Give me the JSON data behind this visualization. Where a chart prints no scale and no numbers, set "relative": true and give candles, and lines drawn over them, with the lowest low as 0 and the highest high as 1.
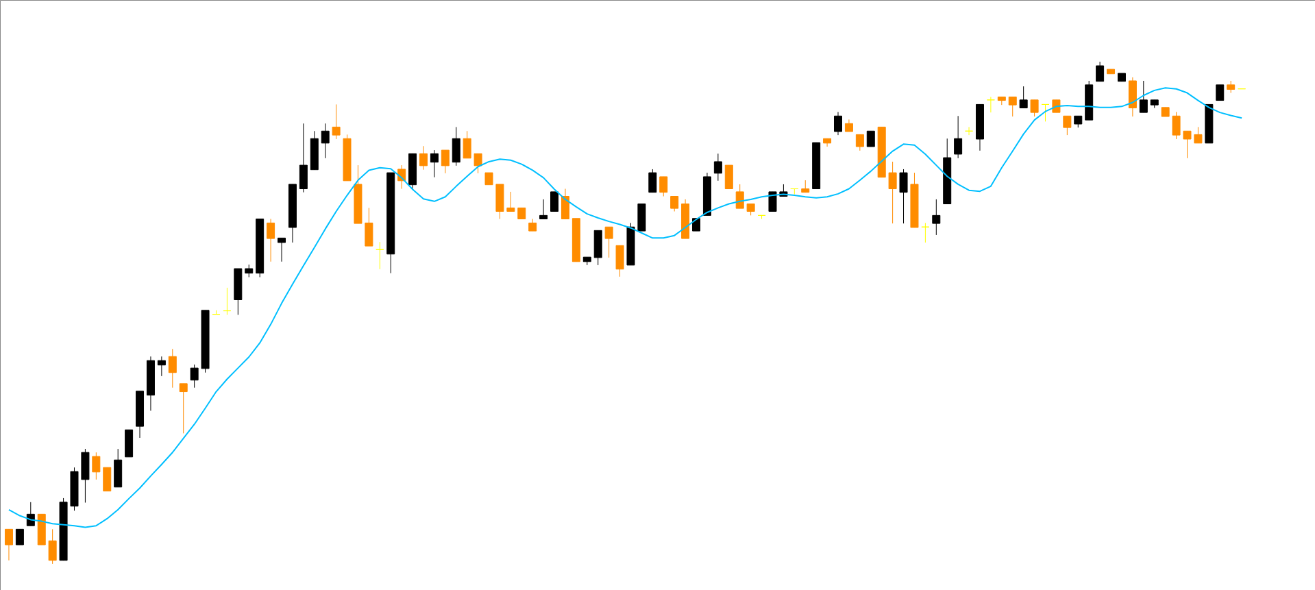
{
  "chart_data": {
    "type": "candlestick",
    "relative": true,
    "tick_labels": false,
    "categories": [
      null,
      null,
      null,
      null,
      null,
      null,
      null,
      null,
      null,
      null,
      null,
      null,
      null,
      null,
      null,
      null,
      null,
      null,
      null,
      null,
      null,
      null,
      null,
      null,
      null,
      null,
      null,
      null,
      null,
      null,
      null,
      null,
      null,
      null,
      null,
      null,
      null,
      null,
      null,
      null,
      null,
      null,
      null,
      null,
      null,
      null,
      null,
      null,
      null,
      null,
      null,
      null,
      null,
      null,
      null,
      null,
      null,
      null,
      null,
      null,
      null,
      null,
      null,
      null,
      null,
      null,
      null,
      null,
      null,
      null,
      null,
      null,
      null,
      null,
      null,
      null,
      null,
      null,
      null,
      null,
      null,
      null,
      null,
      null,
      null,
      null,
      null,
      null,
      null,
      null,
      null,
      null,
      null,
      null,
      null,
      null,
      null,
      null,
      null,
      null,
      null,
      null,
      null,
      null,
      null,
      null,
      null,
      null,
      null,
      null,
      null,
      null,
      null,
      null
    ],
    "ohlc": [
      [
        0.069,
        0.069,
        0.007,
        0.038
      ],
      [
        0.038,
        0.069,
        0.038,
        0.069
      ],
      [
        0.076,
        0.123,
        0.076,
        0.099
      ],
      [
        0.099,
        0.099,
        0.038,
        0.038
      ],
      [
        0.046,
        0.069,
        0,
        0.007
      ],
      [
        0.007,
        0.131,
        0.007,
        0.123
      ],
      [
        0.115,
        0.192,
        0.106,
        0.184
      ],
      [
        0.168,
        0.229,
        0.122,
        0.222
      ],
      [
        0.214,
        0.222,
        0.168,
        0.183
      ],
      [
        0.192,
        0.192,
        0.145,
        0.145
      ],
      [
        0.153,
        0.229,
        0.153,
        0.207
      ],
      [
        0.213,
        0.267,
        0.213,
        0.267
      ],
      [
        0.274,
        0.344,
        0.251,
        0.344
      ],
      [
        0.336,
        0.413,
        0.305,
        0.405
      ],
      [
        0.396,
        0.413,
        0.374,
        0.405
      ],
      [
        0.413,
        0.428,
        0.351,
        0.381
      ],
      [
        0.359,
        0.359,
        0.26,
        0.343
      ],
      [
        0.366,
        0.397,
        0.351,
        0.39
      ],
      [
        0.389,
        0.505,
        0.381,
        0.505
      ],
      [
        0.497,
        0.505,
        0.497,
        0.497
      ],
      [
        0.504,
        0.55,
        0.496,
        0.504
      ],
      [
        0.526,
        0.588,
        0.496,
        0.588
      ],
      [
        0.579,
        0.596,
        0.571,
        0.588
      ],
      [
        0.579,
        0.687,
        0.571,
        0.687
      ],
      [
        0.679,
        0.687,
        0.602,
        0.648
      ],
      [
        0.64,
        0.649,
        0.602,
        0.649
      ],
      [
        0.67,
        0.756,
        0.64,
        0.756
      ],
      [
        0.747,
        0.877,
        0.74,
        0.794
      ],
      [
        0.785,
        0.862,
        0.785,
        0.847
      ],
      [
        0.838,
        0.877,
        0.808,
        0.862
      ],
      [
        0.87,
        0.915,
        0.846,
        0.854
      ],
      [
        0.847,
        0.855,
        0.763,
        0.763
      ],
      [
        0.756,
        0.794,
        0.678,
        0.678
      ],
      [
        0.679,
        0.709,
        0.633,
        0.633
      ],
      [
        0.626,
        0.641,
        0.587,
        0.626
      ],
      [
        0.617,
        0.779,
        0.579,
        0.779
      ],
      [
        0.786,
        0.794,
        0.747,
        0.763
      ],
      [
        0.755,
        0.817,
        0.747,
        0.817
      ],
      [
        0.817,
        0.832,
        0.785,
        0.793
      ],
      [
        0.8,
        0.824,
        0.77,
        0.817
      ],
      [
        0.824,
        0.824,
        0.778,
        0.793
      ],
      [
        0.8,
        0.87,
        0.793,
        0.847
      ],
      [
        0.847,
        0.862,
        0.808,
        0.808
      ],
      [
        0.817,
        0.817,
        0.778,
        0.793
      ],
      [
        0.779,
        0.779,
        0.755,
        0.755
      ],
      [
        0.756,
        0.756,
        0.687,
        0.702
      ],
      [
        0.709,
        0.741,
        0.702,
        0.702
      ],
      [
        0.709,
        0.709,
        0.687,
        0.687
      ],
      [
        0.679,
        0.687,
        0.663,
        0.663
      ],
      [
        0.687,
        0.726,
        0.687,
        0.694
      ],
      [
        0.702,
        0.741,
        0.702,
        0.741
      ],
      [
        0.732,
        0.747,
        0.687,
        0.687
      ],
      [
        0.688,
        0.688,
        0.602,
        0.602
      ],
      [
        0.602,
        0.611,
        0.595,
        0.611
      ],
      [
        0.61,
        0.664,
        0.595,
        0.664
      ],
      [
        0.671,
        0.671,
        0.61,
        0.648
      ],
      [
        0.634,
        0.634,
        0.572,
        0.587
      ],
      [
        0.595,
        0.679,
        0.595,
        0.671
      ],
      [
        0.663,
        0.717,
        0.663,
        0.717
      ],
      [
        0.74,
        0.786,
        0.74,
        0.779
      ],
      [
        0.771,
        0.771,
        0.732,
        0.74
      ],
      [
        0.732,
        0.732,
        0.702,
        0.708
      ],
      [
        0.717,
        0.726,
        0.648,
        0.648
      ],
      [
        0.663,
        0.688,
        0.663,
        0.688
      ],
      [
        0.694,
        0.779,
        0.694,
        0.771
      ],
      [
        0.778,
        0.817,
        0.763,
        0.801
      ],
      [
        0.794,
        0.794,
        0.747,
        0.747
      ],
      [
        0.741,
        0.756,
        0.708,
        0.708
      ],
      [
        0.717,
        0.717,
        0.694,
        0.702
      ],
      [
        0.694,
        0.694,
        0.687,
        0.694
      ],
      [
        0.702,
        0.741,
        0.702,
        0.741
      ],
      [
        0.732,
        0.756,
        0.732,
        0.741
      ],
      [
        0.747,
        0.747,
        0.736,
        0.747
      ],
      [
        0.747,
        0.764,
        0.74,
        0.74
      ],
      [
        0.747,
        0.839,
        0.747,
        0.839
      ],
      [
        0.847,
        0.847,
        0.831,
        0.838
      ],
      [
        0.861,
        0.9,
        0.854,
        0.892
      ],
      [
        0.877,
        0.885,
        0.861,
        0.861
      ],
      [
        0.855,
        0.855,
        0.823,
        0.831
      ],
      [
        0.831,
        0.862,
        0.831,
        0.862
      ],
      [
        0.87,
        0.87,
        0.77,
        0.77
      ],
      [
        0.779,
        0.801,
        0.678,
        0.747
      ],
      [
        0.74,
        0.786,
        0.678,
        0.779
      ],
      [
        0.756,
        0.779,
        0.67,
        0.67
      ],
      [
        0.671,
        0.679,
        0.64,
        0.671
      ],
      [
        0.678,
        0.726,
        0.655,
        0.694
      ],
      [
        0.717,
        0.847,
        0.717,
        0.809
      ],
      [
        0.816,
        0.892,
        0.808,
        0.847
      ],
      [
        0.862,
        0.87,
        0.854,
        0.862
      ],
      [
        0.846,
        0.915,
        0.823,
        0.915
      ],
      [
        0.924,
        0.93,
        0.899,
        0.924
      ],
      [
        0.93,
        0.93,
        0.914,
        0.923
      ],
      [
        0.93,
        0.93,
        0.891,
        0.914
      ],
      [
        0.908,
        0.951,
        0.908,
        0.924
      ],
      [
        0.924,
        0.924,
        0.891,
        0.899
      ],
      [
        0.915,
        0.915,
        0.881,
        0.915
      ],
      [
        0.924,
        0.924,
        0.899,
        0.899
      ],
      [
        0.892,
        0.892,
        0.854,
        0.869
      ],
      [
        0.876,
        0.892,
        0.869,
        0.892
      ],
      [
        0.884,
        0.962,
        0.884,
        0.954
      ],
      [
        0.961,
        1,
        0.961,
        0.992
      ],
      [
        0.985,
        0.985,
        0.976,
        0.976
      ],
      [
        0.961,
        0.977,
        0.961,
        0.977
      ],
      [
        0.962,
        0.969,
        0.891,
        0.908
      ],
      [
        0.899,
        0.962,
        0.899,
        0.924
      ],
      [
        0.914,
        0.924,
        0.908,
        0.924
      ],
      [
        0.909,
        0.909,
        0.891,
        0.891
      ],
      [
        0.892,
        0.9,
        0.846,
        0.854
      ],
      [
        0.862,
        0.862,
        0.808,
        0.846
      ],
      [
        0.855,
        0.87,
        0.838,
        0.838
      ],
      [
        0.838,
        0.915,
        0.838,
        0.915
      ],
      [
        0.923,
        0.954,
        0.923,
        0.954
      ],
      [
        0.954,
        0.962,
        0.938,
        0.945
      ],
      [
        0.946,
        0.946,
        0.946,
        0.946
      ]
    ],
    "colors": [
      "#ff8c00",
      "#000000",
      "#000000",
      "#ff8c00",
      "#ff8c00",
      "#000000",
      "#000000",
      "#000000",
      "#ff8c00",
      "#ff8c00",
      "#000000",
      "#000000",
      "#000000",
      "#000000",
      "#000000",
      "#ff8c00",
      "#ff8c00",
      "#000000",
      "#000000",
      "#ffff00",
      "#ffff00",
      "#000000",
      "#000000",
      "#000000",
      "#ff8c00",
      "#000000",
      "#000000",
      "#000000",
      "#000000",
      "#000000",
      "#ff8c00",
      "#ff8c00",
      "#ff8c00",
      "#ff8c00",
      "#ffff00",
      "#000000",
      "#ff8c00",
      "#000000",
      "#ff8c00",
      "#000000",
      "#ff8c00",
      "#000000",
      "#ff8c00",
      "#ff8c00",
      "#ff8c00",
      "#ff8c00",
      "#ff8c00",
      "#ff8c00",
      "#ff8c00",
      "#000000",
      "#000000",
      "#ff8c00",
      "#ff8c00",
      "#000000",
      "#000000",
      "#ff8c00",
      "#ff8c00",
      "#000000",
      "#000000",
      "#000000",
      "#ff8c00",
      "#ff8c00",
      "#ff8c00",
      "#000000",
      "#000000",
      "#000000",
      "#ff8c00",
      "#ff8c00",
      "#ff8c00",
      "#ffff00",
      "#000000",
      "#000000",
      "#ffff00",
      "#ff8c00",
      "#000000",
      "#ff8c00",
      "#000000",
      "#ff8c00",
      "#ff8c00",
      "#000000",
      "#ff8c00",
      "#ff8c00",
      "#000000",
      "#ff8c00",
      "#ffff00",
      "#000000",
      "#000000",
      "#000000",
      "#ffff00",
      "#000000",
      "#ffff00",
      "#ff8c00",
      "#ff8c00",
      "#000000",
      "#ff8c00",
      "#ffff00",
      "#ff8c00",
      "#ff8c00",
      "#000000",
      "#000000",
      "#000000",
      "#ff8c00",
      "#000000",
      "#ff8c00",
      "#000000",
      "#000000",
      "#ff8c00",
      "#ff8c00",
      "#ff8c00",
      "#ff8c00",
      "#000000",
      "#000000",
      "#ff8c00",
      "#ffff00"
    ],
    "series": [
      {
        "type": "line",
        "color": "#00bfff",
        "values": [
          0.108,
          0.096,
          0.088,
          0.085,
          0.08,
          0.078,
          0.076,
          0.073,
          0.076,
          0.09,
          0.108,
          0.13,
          0.151,
          0.175,
          0.198,
          0.222,
          0.25,
          0.278,
          0.31,
          0.343,
          0.368,
          0.39,
          0.412,
          0.44,
          0.477,
          0.519,
          0.557,
          0.594,
          0.63,
          0.667,
          0.702,
          0.734,
          0.764,
          0.784,
          0.789,
          0.787,
          0.769,
          0.746,
          0.727,
          0.722,
          0.731,
          0.752,
          0.772,
          0.791,
          0.801,
          0.806,
          0.804,
          0.796,
          0.784,
          0.769,
          0.746,
          0.726,
          0.711,
          0.697,
          0.689,
          0.682,
          0.676,
          0.669,
          0.659,
          0.649,
          0.649,
          0.654,
          0.67,
          0.686,
          0.7,
          0.709,
          0.717,
          0.722,
          0.726,
          0.731,
          0.734,
          0.736,
          0.734,
          0.731,
          0.729,
          0.731,
          0.737,
          0.747,
          0.764,
          0.782,
          0.802,
          0.822,
          0.836,
          0.834,
          0.816,
          0.794,
          0.772,
          0.756,
          0.744,
          0.742,
          0.752,
          0.789,
          0.822,
          0.856,
          0.884,
          0.901,
          0.911,
          0.913,
          0.911,
          0.911,
          0.909,
          0.909,
          0.911,
          0.919,
          0.933,
          0.943,
          0.948,
          0.946,
          0.938,
          0.923,
          0.909,
          0.899,
          0.893,
          0.888
        ]
      }
    ]
  }
}
